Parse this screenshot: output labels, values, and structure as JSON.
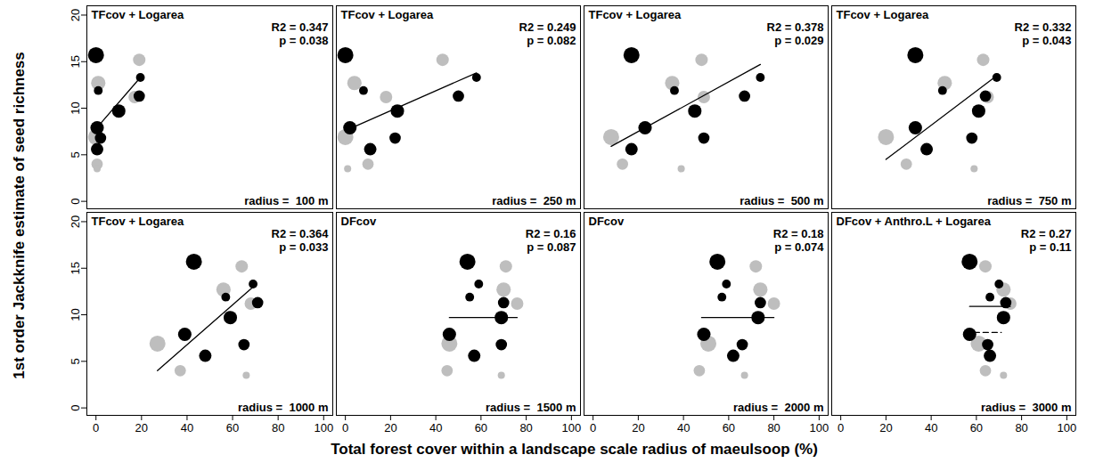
{
  "chart_data": {
    "type": "scatter",
    "xlabel": "Total forest cover within a landscape scale radius of maeulsoop (%)",
    "ylabel": "1st order Jackknife estimate of seed richness",
    "xlim": [
      -4,
      104
    ],
    "ylim": [
      -0.8,
      21
    ],
    "xticks": [
      0,
      20,
      40,
      60,
      80,
      100
    ],
    "yticks": [
      0,
      5,
      10,
      15,
      20
    ],
    "panels": [
      {
        "title": "TFcov + Logarea",
        "annotation": [
          "R2 = 0.347",
          "p = 0.038"
        ],
        "radius_label": "radius =  100 m",
        "series": [
          {
            "color": "#000000",
            "x": [
              0,
              19.5,
              1,
              19,
              10,
              0.5,
              2,
              0.5
            ],
            "y": [
              15.7,
              13.3,
              11.9,
              11.3,
              9.7,
              7.9,
              6.8,
              5.6
            ],
            "size": [
              5,
              1.5,
              1.5,
              2.5,
              3.5,
              3.5,
              2.5,
              3
            ]
          },
          {
            "color": "#bebebe",
            "x": [
              19,
              1,
              17,
              0,
              0.5,
              0.5
            ],
            "y": [
              15.2,
              12.7,
              11.2,
              6.9,
              4.0,
              3.5
            ],
            "size": [
              3,
              4,
              3,
              5,
              2.5,
              1
            ]
          }
        ],
        "lines": [
          {
            "x": [
              0,
              19.5
            ],
            "y": [
              7.8,
              13.3
            ],
            "line_style": "solid"
          }
        ]
      },
      {
        "title": "TFcov + Logarea",
        "annotation": [
          "R2 = 0.249",
          "p = 0.082"
        ],
        "radius_label": "radius =  250 m",
        "series": [
          {
            "color": "#000000",
            "x": [
              0,
              58,
              8,
              50,
              23,
              2,
              22,
              11
            ],
            "y": [
              15.7,
              13.3,
              11.9,
              11.3,
              9.7,
              7.9,
              6.8,
              5.6
            ],
            "size": [
              5,
              1.5,
              1.5,
              2.5,
              3.5,
              3.5,
              2.5,
              3
            ]
          },
          {
            "color": "#bebebe",
            "x": [
              43,
              4,
              18,
              0,
              10,
              1
            ],
            "y": [
              15.2,
              12.7,
              11.2,
              6.9,
              4.0,
              3.5
            ],
            "size": [
              3,
              4,
              3,
              5,
              2.5,
              1
            ]
          }
        ],
        "lines": [
          {
            "x": [
              1,
              58
            ],
            "y": [
              7.7,
              13.8
            ],
            "line_style": "solid"
          }
        ]
      },
      {
        "title": "TFcov + Logarea",
        "annotation": [
          "R2 = 0.378",
          "p = 0.029"
        ],
        "radius_label": "radius =  500 m",
        "series": [
          {
            "color": "#000000",
            "x": [
              17,
              74,
              36,
              67,
              45,
              23,
              49,
              17
            ],
            "y": [
              15.7,
              13.3,
              11.9,
              11.3,
              9.7,
              7.9,
              6.8,
              5.6
            ],
            "size": [
              5,
              1.5,
              1.5,
              2.5,
              3.5,
              3.5,
              2.5,
              3
            ]
          },
          {
            "color": "#bebebe",
            "x": [
              48,
              35,
              49,
              8,
              13,
              39
            ],
            "y": [
              15.2,
              12.7,
              11.2,
              6.9,
              4.0,
              3.5
            ],
            "size": [
              3,
              4,
              3,
              5,
              2.5,
              1
            ]
          }
        ],
        "lines": [
          {
            "x": [
              8,
              74
            ],
            "y": [
              5.9,
              14.7
            ],
            "line_style": "solid"
          }
        ]
      },
      {
        "title": "TFcov + Logarea",
        "annotation": [
          "R2 = 0.332",
          "p = 0.043"
        ],
        "radius_label": "radius =  750 m",
        "series": [
          {
            "color": "#000000",
            "x": [
              33,
              69,
              45,
              64,
              61,
              33,
              58,
              38
            ],
            "y": [
              15.7,
              13.3,
              11.9,
              11.3,
              9.7,
              7.9,
              6.8,
              5.6
            ],
            "size": [
              5,
              1.5,
              1.5,
              2.5,
              3.5,
              3.5,
              2.5,
              3
            ]
          },
          {
            "color": "#bebebe",
            "x": [
              63,
              46,
              65,
              20,
              29,
              59
            ],
            "y": [
              15.2,
              12.7,
              11.2,
              6.9,
              4.0,
              3.5
            ],
            "size": [
              3,
              4,
              3,
              5,
              2.5,
              1
            ]
          }
        ],
        "lines": [
          {
            "x": [
              20,
              69
            ],
            "y": [
              4.5,
              13.5
            ],
            "line_style": "solid"
          }
        ]
      },
      {
        "title": "TFcov + Logarea",
        "annotation": [
          "R2 = 0.364",
          "p = 0.033"
        ],
        "radius_label": "radius =  1000 m",
        "series": [
          {
            "color": "#000000",
            "x": [
              43,
              69,
              57,
              71,
              59,
              39,
              65,
              48
            ],
            "y": [
              15.7,
              13.3,
              11.9,
              11.3,
              9.7,
              7.9,
              6.8,
              5.6
            ],
            "size": [
              5,
              1.5,
              1.5,
              2.5,
              3.5,
              3.5,
              2.5,
              3
            ]
          },
          {
            "color": "#bebebe",
            "x": [
              64,
              56,
              68,
              27,
              37,
              66
            ],
            "y": [
              15.2,
              12.7,
              11.2,
              6.9,
              4.0,
              3.5
            ],
            "size": [
              3,
              4,
              3,
              5,
              2.5,
              1
            ]
          }
        ],
        "lines": [
          {
            "x": [
              27,
              69
            ],
            "y": [
              4.0,
              13.0
            ],
            "line_style": "solid"
          }
        ]
      },
      {
        "title": "DFcov",
        "annotation": [
          "R2 = 0.16",
          "p = 0.087"
        ],
        "radius_label": "radius =  1500 m",
        "series": [
          {
            "color": "#000000",
            "x": [
              54,
              59,
              55,
              70,
              69,
              46,
              69,
              57
            ],
            "y": [
              15.7,
              13.3,
              11.9,
              11.3,
              9.7,
              7.9,
              6.8,
              5.6
            ],
            "size": [
              5,
              1.5,
              1.5,
              2.5,
              3.5,
              3.5,
              2.5,
              3
            ]
          },
          {
            "color": "#bebebe",
            "x": [
              71,
              70,
              76,
              46,
              45,
              69
            ],
            "y": [
              15.2,
              12.7,
              11.2,
              6.9,
              4.0,
              3.5
            ],
            "size": [
              3,
              4,
              3,
              5,
              2.5,
              1
            ]
          }
        ],
        "lines": [
          {
            "x": [
              46,
              76
            ],
            "y": [
              9.7,
              9.7
            ],
            "line_style": "solid"
          }
        ]
      },
      {
        "title": "DFcov",
        "annotation": [
          "R2 = 0.18",
          "p = 0.074"
        ],
        "radius_label": "radius =  2000 m",
        "series": [
          {
            "color": "#000000",
            "x": [
              55,
              59,
              57,
              74,
              73,
              49,
              66,
              62
            ],
            "y": [
              15.7,
              13.3,
              11.9,
              11.3,
              9.7,
              7.9,
              6.8,
              5.6
            ],
            "size": [
              5,
              1.5,
              1.5,
              2.5,
              3.5,
              3.5,
              2.5,
              3
            ]
          },
          {
            "color": "#bebebe",
            "x": [
              72,
              74,
              80,
              51,
              47,
              67
            ],
            "y": [
              15.2,
              12.7,
              11.2,
              6.9,
              4.0,
              3.5
            ],
            "size": [
              3,
              4,
              3,
              5,
              2.5,
              1
            ]
          }
        ],
        "lines": [
          {
            "x": [
              48,
              80
            ],
            "y": [
              9.7,
              9.7
            ],
            "line_style": "solid"
          }
        ]
      },
      {
        "title": "DFcov + Anthro.L + Logarea",
        "annotation": [
          "R2 = 0.27",
          "p = 0.11"
        ],
        "radius_label": "radius =  3000 m",
        "series": [
          {
            "color": "#000000",
            "x": [
              57,
              70,
              66,
              73,
              72,
              57,
              65,
              66
            ],
            "y": [
              15.7,
              13.3,
              11.9,
              11.3,
              9.7,
              7.9,
              6.8,
              5.6
            ],
            "size": [
              5,
              1.5,
              1.5,
              2.5,
              3.5,
              3.5,
              2.5,
              3
            ]
          },
          {
            "color": "#bebebe",
            "x": [
              64,
              72,
              75,
              61,
              64,
              72
            ],
            "y": [
              15.2,
              12.7,
              11.2,
              6.9,
              4.0,
              3.5
            ],
            "size": [
              3,
              4,
              3,
              5,
              2.5,
              1
            ]
          }
        ],
        "lines": [
          {
            "x": [
              57,
              75
            ],
            "y": [
              10.9,
              10.9
            ],
            "line_style": "solid"
          },
          {
            "x": [
              59,
              71
            ],
            "y": [
              8.1,
              8.1
            ],
            "line_style": "dashed"
          }
        ]
      }
    ]
  }
}
